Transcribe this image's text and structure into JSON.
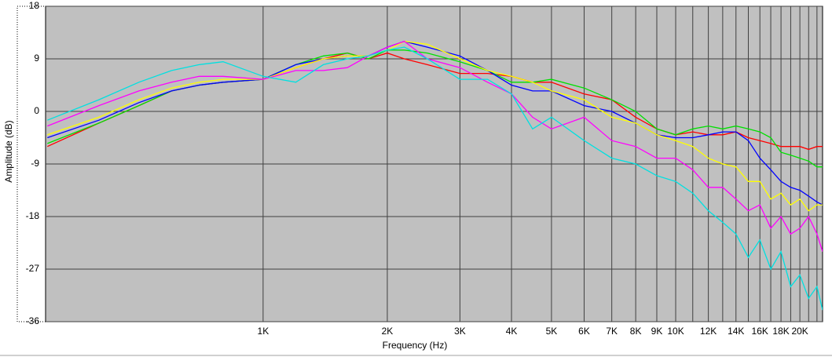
{
  "chart_data": {
    "type": "line",
    "xlabel": "Frequency (Hz)",
    "ylabel": "Amplitude (dB)",
    "xlog": true,
    "grid": true,
    "xlim": [
      297,
      22700
    ],
    "ylim": [
      -36,
      18
    ],
    "yticks": [
      18,
      9,
      0,
      -9,
      -18,
      -27,
      -36
    ],
    "xticks": [
      {
        "value": 1000,
        "label": "1K"
      },
      {
        "value": 2000,
        "label": "2K"
      },
      {
        "value": 3000,
        "label": "3K"
      },
      {
        "value": 4000,
        "label": "4K"
      },
      {
        "value": 5000,
        "label": "5K"
      },
      {
        "value": 6000,
        "label": "6K"
      },
      {
        "value": 7000,
        "label": "7K"
      },
      {
        "value": 8000,
        "label": "8K"
      },
      {
        "value": 9000,
        "label": "9K"
      },
      {
        "value": 10000,
        "label": "10K"
      },
      {
        "value": 12000,
        "label": "12K"
      },
      {
        "value": 14000,
        "label": "14K"
      },
      {
        "value": 16000,
        "label": "16K"
      },
      {
        "value": 18000,
        "label": "18K"
      },
      {
        "value": 20000,
        "label": "20K"
      }
    ],
    "xgrid_minor": [
      11000,
      13000,
      15000,
      17000,
      19000,
      21000,
      22000
    ],
    "x": [
      300,
      400,
      500,
      600,
      700,
      800,
      1000,
      1200,
      1400,
      1600,
      1800,
      2000,
      2200,
      2500,
      3000,
      3500,
      4000,
      4500,
      5000,
      6000,
      7000,
      8000,
      9000,
      10000,
      11000,
      12000,
      13000,
      14000,
      15000,
      16000,
      17000,
      18000,
      19000,
      20000,
      21000,
      22000,
      22700
    ],
    "series": [
      {
        "color": "#ff0000",
        "values": [
          -6,
          -2,
          1,
          3.5,
          4.5,
          5,
          5.5,
          7.5,
          9,
          10,
          9,
          10,
          9,
          8,
          6.5,
          6.5,
          6,
          5,
          5,
          3,
          2,
          -1,
          -3,
          -4,
          -3.5,
          -4,
          -4,
          -3.5,
          -4.5,
          -5,
          -5.5,
          -6,
          -6,
          -6,
          -6.5,
          -6,
          -6
        ]
      },
      {
        "color": "#00e000",
        "values": [
          -5.5,
          -2,
          1,
          3.5,
          4.5,
          5,
          5.5,
          8,
          9.5,
          10,
          9,
          10.5,
          10.5,
          10,
          8.5,
          7,
          5,
          5,
          5.5,
          4,
          2,
          0,
          -3,
          -4,
          -3,
          -2.5,
          -3,
          -2.5,
          -3,
          -3.5,
          -4.5,
          -7,
          -7.5,
          -8,
          -8.5,
          -9.5,
          -9.5
        ]
      },
      {
        "color": "#0000ff",
        "values": [
          -4.5,
          -1.5,
          1.5,
          3.5,
          4.5,
          5,
          5.5,
          8,
          9,
          9.5,
          9.5,
          11,
          12,
          11,
          9.5,
          7,
          4.5,
          3.5,
          3.5,
          1,
          0,
          -2,
          -4,
          -4.5,
          -4.5,
          -4,
          -3.5,
          -3.5,
          -5,
          -8,
          -10,
          -12,
          -13,
          -13.5,
          -14.5,
          -15.5,
          -16
        ]
      },
      {
        "color": "#ffff00",
        "values": [
          -4,
          -1,
          2,
          4,
          5,
          5.5,
          5.5,
          7.5,
          9,
          9.5,
          9.5,
          10.5,
          12,
          11.5,
          9,
          7,
          6,
          5,
          3.5,
          2,
          -1,
          -2,
          -4,
          -5,
          -6,
          -8,
          -9,
          -9.5,
          -12,
          -12,
          -15,
          -14,
          -16,
          -15,
          -17,
          -16,
          -16
        ]
      },
      {
        "color": "#ff00ff",
        "values": [
          -2.5,
          1,
          3.5,
          5,
          6,
          6,
          5.5,
          7,
          7,
          7.5,
          9.5,
          11,
          12,
          9,
          7.5,
          5,
          3,
          -1,
          -3,
          -1,
          -5,
          -6,
          -8,
          -8,
          -10,
          -13,
          -13,
          -15,
          -17,
          -16,
          -20,
          -18,
          -21,
          -20,
          -18,
          -21,
          -24
        ]
      },
      {
        "color": "#00e0e0",
        "values": [
          -1.5,
          2,
          5,
          7,
          8,
          8.5,
          6,
          5,
          8,
          9,
          9.5,
          10.5,
          11,
          9,
          5.5,
          5.5,
          3,
          -3,
          -1,
          -5,
          -8,
          -9,
          -11,
          -12,
          -14,
          -17,
          -19,
          -21,
          -25,
          -22,
          -27,
          -24,
          -30,
          -28,
          -32,
          -30,
          -34
        ]
      }
    ]
  }
}
